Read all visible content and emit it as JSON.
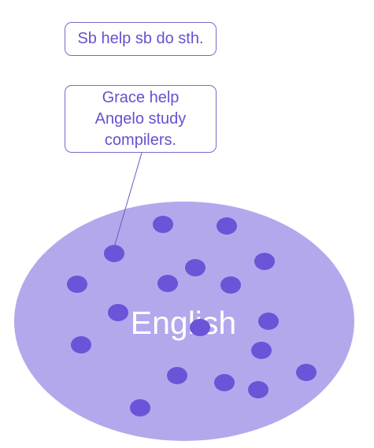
{
  "callouts": {
    "pattern": {
      "text": "Sb help sb do sth."
    },
    "example": {
      "lines": [
        "Grace help",
        "Angelo study",
        "compilers."
      ]
    }
  },
  "language_set": {
    "label": "English",
    "fill_color": "#b3a8ec",
    "dot_color": "#6b54d8",
    "label_color": "#ffffff"
  },
  "colors": {
    "callout_border": "#7a68c9",
    "callout_text": "#6a4fcf",
    "connector": "#6a56c4"
  }
}
